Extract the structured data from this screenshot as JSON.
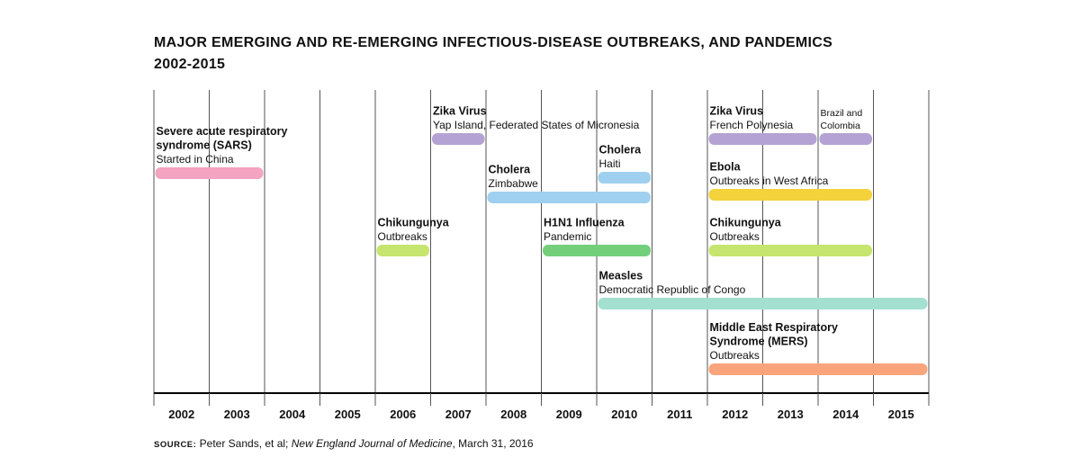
{
  "title": {
    "line1": "MAJOR EMERGING AND RE-EMERGING INFECTIOUS-DISEASE OUTBREAKS, AND PANDEMICS",
    "line2": "2002-2015"
  },
  "source": {
    "label": "SOURCE:",
    "authors": "Peter Sands, et al;",
    "journal": "New England Journal of Medicine",
    "date": ", March 31, 2016"
  },
  "chart_data": {
    "type": "timeline",
    "title": "MAJOR EMERGING AND RE-EMERGING INFECTIOUS-DISEASE OUTBREAKS, AND PANDEMICS 2002-2015",
    "years": [
      "2002",
      "2003",
      "2004",
      "2005",
      "2006",
      "2007",
      "2008",
      "2009",
      "2010",
      "2011",
      "2012",
      "2013",
      "2014",
      "2015"
    ],
    "grid": true,
    "events": [
      {
        "name": "Severe acute respiratory syndrome (SARS)",
        "name_lines": [
          "Severe acute respiratory",
          "syndrome (SARS)"
        ],
        "detail": [
          "Started in China"
        ],
        "start": "2002",
        "end": "2003",
        "color": "#f4a3c0"
      },
      {
        "name": "Zika Virus",
        "name_lines": [
          "Zika Virus"
        ],
        "detail": [
          "Yap Island, Federated States of Micronesia"
        ],
        "start": "2007",
        "end": "2007",
        "color": "#b4a2d4"
      },
      {
        "name": "Cholera",
        "name_lines": [
          "Cholera"
        ],
        "detail": [
          "Haiti"
        ],
        "start": "2010",
        "end": "2010",
        "color": "#9fd0ef"
      },
      {
        "name": "Cholera",
        "name_lines": [
          "Cholera"
        ],
        "detail": [
          "Zimbabwe"
        ],
        "start": "2008",
        "end": "2010",
        "color": "#9fd0ef"
      },
      {
        "name": "Chikungunya",
        "name_lines": [
          "Chikungunya"
        ],
        "detail": [
          "Outbreaks"
        ],
        "start": "2006",
        "end": "2006",
        "color": "#c6e56f"
      },
      {
        "name": "H1N1 Influenza",
        "name_lines": [
          "H1N1 Influenza"
        ],
        "detail": [
          "Pandemic"
        ],
        "start": "2009",
        "end": "2010",
        "color": "#74cf7a"
      },
      {
        "name": "Measles",
        "name_lines": [
          "Measles"
        ],
        "detail": [
          "Democratic Republic of Congo"
        ],
        "start": "2010",
        "end": "2015",
        "color": "#a4e0d0"
      },
      {
        "name": "Zika Virus",
        "name_lines": [
          "Zika Virus"
        ],
        "detail": [
          "French Polynesia"
        ],
        "start": "2012",
        "end": "2013",
        "color": "#b4a2d4"
      },
      {
        "name": "",
        "name_lines": [],
        "detail": [
          "Brazil and",
          "Colombia"
        ],
        "start": "2014",
        "end": "2014",
        "color": "#b4a2d4"
      },
      {
        "name": "Ebola",
        "name_lines": [
          "Ebola"
        ],
        "detail": [
          "Outbreaks in West Africa"
        ],
        "start": "2012",
        "end": "2014",
        "color": "#f3d23c"
      },
      {
        "name": "Chikungunya",
        "name_lines": [
          "Chikungunya"
        ],
        "detail": [
          "Outbreaks"
        ],
        "start": "2012",
        "end": "2014",
        "color": "#c6e56f"
      },
      {
        "name": "Middle East Respiratory Syndrome (MERS)",
        "name_lines": [
          "Middle East Respiratory",
          "Syndrome (MERS)"
        ],
        "detail": [
          "Outbreaks"
        ],
        "start": "2012",
        "end": "2015",
        "color": "#f9a47a"
      }
    ]
  }
}
